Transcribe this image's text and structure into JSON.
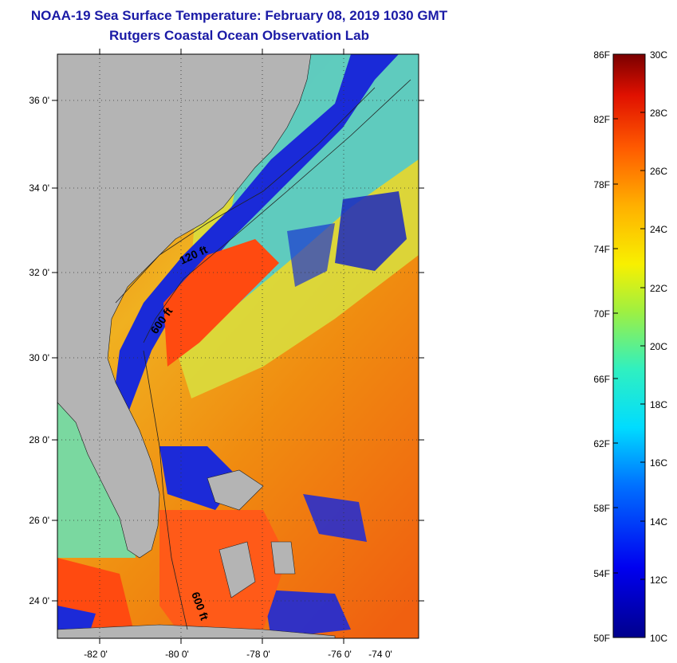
{
  "header": {
    "title": "NOAA-19 Sea Surface Temperature:  February 08, 2019 1030 GMT",
    "subtitle": "Rutgers Coastal Ocean Observation Lab"
  },
  "map": {
    "lat_labels": [
      "36 0'",
      "34 0'",
      "32 0'",
      "30 0'",
      "28 0'",
      "26 0'",
      "24 0'"
    ],
    "lon_labels": [
      "-82 0'",
      "-80 0'",
      "-78 0'",
      "-76 0'",
      "-74 0'"
    ],
    "contours": [
      "120 ft",
      "600 ft",
      "600 ft"
    ]
  },
  "colorbar": {
    "fahrenheit_labels": [
      "86F",
      "82F",
      "78F",
      "74F",
      "70F",
      "66F",
      "62F",
      "58F",
      "54F",
      "50F"
    ],
    "celsius_labels": [
      "30C",
      "28C",
      "26C",
      "24C",
      "22C",
      "20C",
      "18C",
      "16C",
      "14C",
      "12C",
      "10C"
    ]
  },
  "colors": {
    "title": "#1a1aa6",
    "land": "#b4b4b4",
    "cold": "#1010c8",
    "warm": "#ff4a10"
  }
}
